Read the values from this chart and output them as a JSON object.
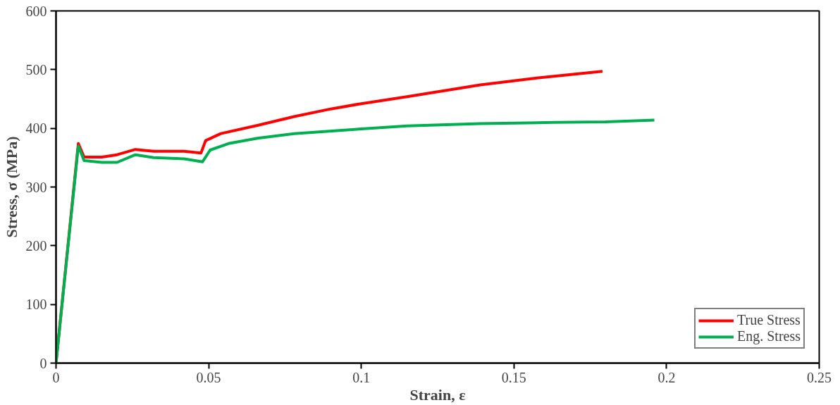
{
  "chart_data": {
    "type": "line",
    "xlabel": "Strain, ε",
    "ylabel": "Stress, σ (MPa)",
    "xlim": [
      0,
      0.25
    ],
    "ylim": [
      0,
      600
    ],
    "xticks": [
      0,
      0.05,
      0.1,
      0.15,
      0.2,
      0.25
    ],
    "yticks": [
      0,
      100,
      200,
      300,
      400,
      500,
      600
    ],
    "grid": false,
    "legend": "bottom right",
    "marker": "none",
    "line_style": "solid",
    "series": [
      {
        "name": "True Stress",
        "color": "#ff0000",
        "x": [
          0,
          0.0073,
          0.0092,
          0.015,
          0.02,
          0.026,
          0.032,
          0.042,
          0.0475,
          0.049,
          0.054,
          0.066,
          0.078,
          0.09,
          0.1,
          0.115,
          0.139,
          0.158,
          0.179
        ],
        "values": [
          0,
          374,
          351,
          351,
          355,
          364,
          361,
          361,
          358,
          379,
          391,
          405,
          420,
          433,
          442,
          454,
          474,
          486,
          497
        ]
      },
      {
        "name": "Eng. Stress",
        "color": "#00b050",
        "x": [
          0,
          0.0073,
          0.0092,
          0.015,
          0.02,
          0.026,
          0.032,
          0.042,
          0.048,
          0.0505,
          0.0565,
          0.066,
          0.078,
          0.1,
          0.115,
          0.139,
          0.163,
          0.18,
          0.196
        ],
        "values": [
          0,
          370,
          345,
          342,
          342,
          355,
          350,
          348,
          343,
          363,
          374,
          383,
          391,
          399,
          404,
          408,
          410,
          411,
          414
        ]
      }
    ]
  }
}
